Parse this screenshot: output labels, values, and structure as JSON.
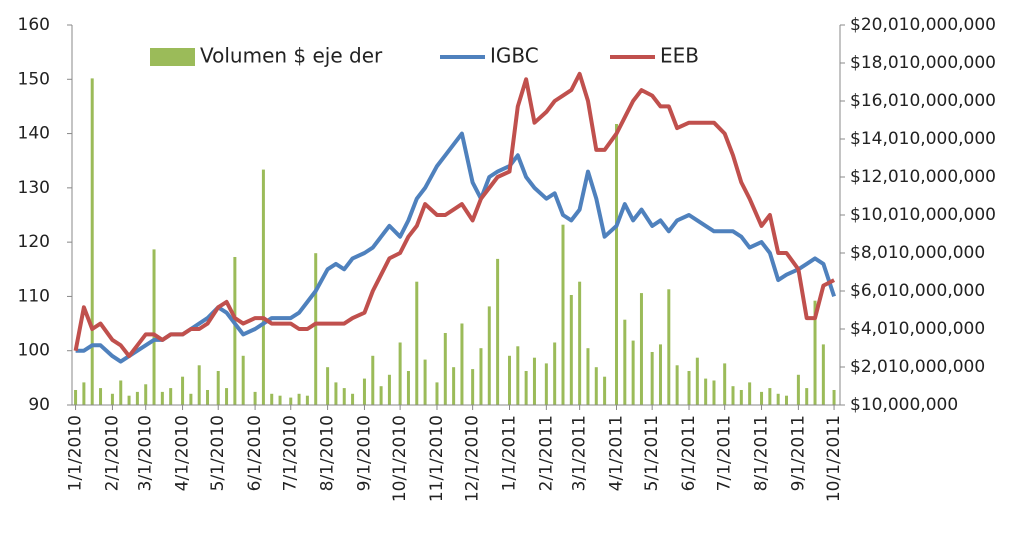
{
  "chart_data": {
    "type": "bar-line",
    "x": [
      "1/1/2010",
      "1/8/2010",
      "1/15/2010",
      "1/22/2010",
      "2/1/2010",
      "2/8/2010",
      "2/15/2010",
      "2/22/2010",
      "3/1/2010",
      "3/8/2010",
      "3/15/2010",
      "3/22/2010",
      "4/1/2010",
      "4/8/2010",
      "4/15/2010",
      "4/22/2010",
      "5/1/2010",
      "5/8/2010",
      "5/15/2010",
      "5/22/2010",
      "6/1/2010",
      "6/8/2010",
      "6/15/2010",
      "6/22/2010",
      "7/1/2010",
      "7/8/2010",
      "7/15/2010",
      "7/22/2010",
      "8/1/2010",
      "8/8/2010",
      "8/15/2010",
      "8/22/2010",
      "9/1/2010",
      "9/8/2010",
      "9/15/2010",
      "9/22/2010",
      "10/1/2010",
      "10/8/2010",
      "10/15/2010",
      "10/22/2010",
      "11/1/2010",
      "11/8/2010",
      "11/15/2010",
      "11/22/2010",
      "12/1/2010",
      "12/8/2010",
      "12/15/2010",
      "12/22/2010",
      "1/1/2011",
      "1/8/2011",
      "1/15/2011",
      "1/22/2011",
      "2/1/2011",
      "2/8/2011",
      "2/15/2011",
      "2/22/2011",
      "3/1/2011",
      "3/8/2011",
      "3/15/2011",
      "3/22/2011",
      "4/1/2011",
      "4/8/2011",
      "4/15/2011",
      "4/22/2011",
      "5/1/2011",
      "5/8/2011",
      "5/15/2011",
      "5/22/2011",
      "6/1/2011",
      "6/8/2011",
      "6/15/2011",
      "6/22/2011",
      "7/1/2011",
      "7/8/2011",
      "7/15/2011",
      "7/22/2011",
      "8/1/2011",
      "8/8/2011",
      "8/15/2011",
      "8/22/2011",
      "9/1/2011",
      "9/8/2011",
      "9/15/2011",
      "9/22/2011",
      "10/1/2011"
    ],
    "series": [
      {
        "name": "Volumen $ eje der",
        "type": "bar",
        "axis": "y2",
        "color": "#9bbb59",
        "values": [
          800000000,
          1200000000,
          17200000000,
          900000000,
          600000000,
          1300000000,
          500000000,
          700000000,
          1100000000,
          8200000000,
          700000000,
          900000000,
          1500000000,
          600000000,
          2100000000,
          800000000,
          1800000000,
          900000000,
          7800000000,
          2600000000,
          700000000,
          12400000000,
          600000000,
          500000000,
          400000000,
          600000000,
          500000000,
          8000000000,
          2000000000,
          1200000000,
          900000000,
          600000000,
          1400000000,
          2600000000,
          1000000000,
          1600000000,
          3300000000,
          1800000000,
          6500000000,
          2400000000,
          1200000000,
          3800000000,
          2000000000,
          4300000000,
          1900000000,
          3000000000,
          5200000000,
          7700000000,
          2600000000,
          3100000000,
          1800000000,
          2500000000,
          2200000000,
          3300000000,
          9500000000,
          5800000000,
          6500000000,
          3000000000,
          2000000000,
          1500000000,
          14800000000,
          4500000000,
          3400000000,
          5900000000,
          2800000000,
          3200000000,
          6100000000,
          2100000000,
          1800000000,
          2500000000,
          1400000000,
          1300000000,
          2200000000,
          1000000000,
          800000000,
          1200000000,
          700000000,
          900000000,
          600000000,
          500000000,
          1600000000,
          900000000,
          5500000000,
          3200000000,
          800000000
        ]
      },
      {
        "name": "IGBC",
        "type": "line",
        "color": "#4f81bd",
        "values": [
          100,
          100,
          101,
          101,
          99,
          98,
          99,
          100,
          101,
          102,
          102,
          103,
          103,
          104,
          105,
          106,
          108,
          107,
          105,
          103,
          104,
          105,
          106,
          106,
          106,
          107,
          109,
          111,
          115,
          116,
          115,
          117,
          118,
          119,
          121,
          123,
          121,
          124,
          128,
          130,
          134,
          136,
          138,
          140,
          131,
          128,
          132,
          133,
          134,
          136,
          132,
          130,
          128,
          129,
          125,
          124,
          126,
          133,
          128,
          121,
          123,
          127,
          124,
          126,
          123,
          124,
          122,
          124,
          125,
          124,
          123,
          122,
          122,
          122,
          121,
          119,
          120,
          118,
          113,
          114,
          115,
          116,
          117,
          116,
          110
        ]
      },
      {
        "name": "EEB",
        "type": "line",
        "color": "#c0504d",
        "values": [
          100,
          108,
          104,
          105,
          102,
          101,
          99,
          101,
          103,
          103,
          102,
          103,
          103,
          104,
          104,
          105,
          108,
          109,
          106,
          105,
          106,
          106,
          105,
          105,
          105,
          104,
          104,
          105,
          105,
          105,
          105,
          106,
          107,
          111,
          114,
          117,
          118,
          121,
          123,
          127,
          125,
          125,
          126,
          127,
          124,
          128,
          130,
          132,
          133,
          145,
          150,
          142,
          144,
          146,
          147,
          148,
          151,
          146,
          137,
          137,
          140,
          143,
          146,
          148,
          147,
          145,
          145,
          141,
          142,
          142,
          142,
          142,
          140,
          136,
          131,
          128,
          123,
          125,
          118,
          118,
          115,
          106,
          106,
          112,
          113
        ]
      }
    ],
    "xlim": [
      "12/29/2009",
      "10/6/2011"
    ],
    "xticks": [
      "1/1/2010",
      "2/1/2010",
      "3/1/2010",
      "4/1/2010",
      "5/1/2010",
      "6/1/2010",
      "7/1/2010",
      "8/1/2010",
      "9/1/2010",
      "10/1/2010",
      "11/1/2010",
      "12/1/2010",
      "1/1/2011",
      "2/1/2011",
      "3/1/2011",
      "4/1/2011",
      "5/1/2011",
      "6/1/2011",
      "7/1/2011",
      "8/1/2011",
      "9/1/2011",
      "10/1/2011"
    ],
    "ylim": [
      90,
      160
    ],
    "yticks": [
      90,
      100,
      110,
      120,
      130,
      140,
      150,
      160
    ],
    "y2lim": [
      10000000,
      20010000000
    ],
    "y2ticks": [
      {
        "value": 10000000,
        "label": "$10,000,000"
      },
      {
        "value": 2010000000,
        "label": "$2,010,000,000"
      },
      {
        "value": 4010000000,
        "label": "$4,010,000,000"
      },
      {
        "value": 6010000000,
        "label": "$6,010,000,000"
      },
      {
        "value": 8010000000,
        "label": "$8,010,000,000"
      },
      {
        "value": 10010000000,
        "label": "$10,010,000,000"
      },
      {
        "value": 12010000000,
        "label": "$12,010,000,000"
      },
      {
        "value": 14010000000,
        "label": "$14,010,000,000"
      },
      {
        "value": 16010000000,
        "label": "$16,010,000,000"
      },
      {
        "value": 18010000000,
        "label": "$18,010,000,000"
      },
      {
        "value": 20010000000,
        "label": "$20,010,000,000"
      }
    ],
    "legend": "top"
  }
}
